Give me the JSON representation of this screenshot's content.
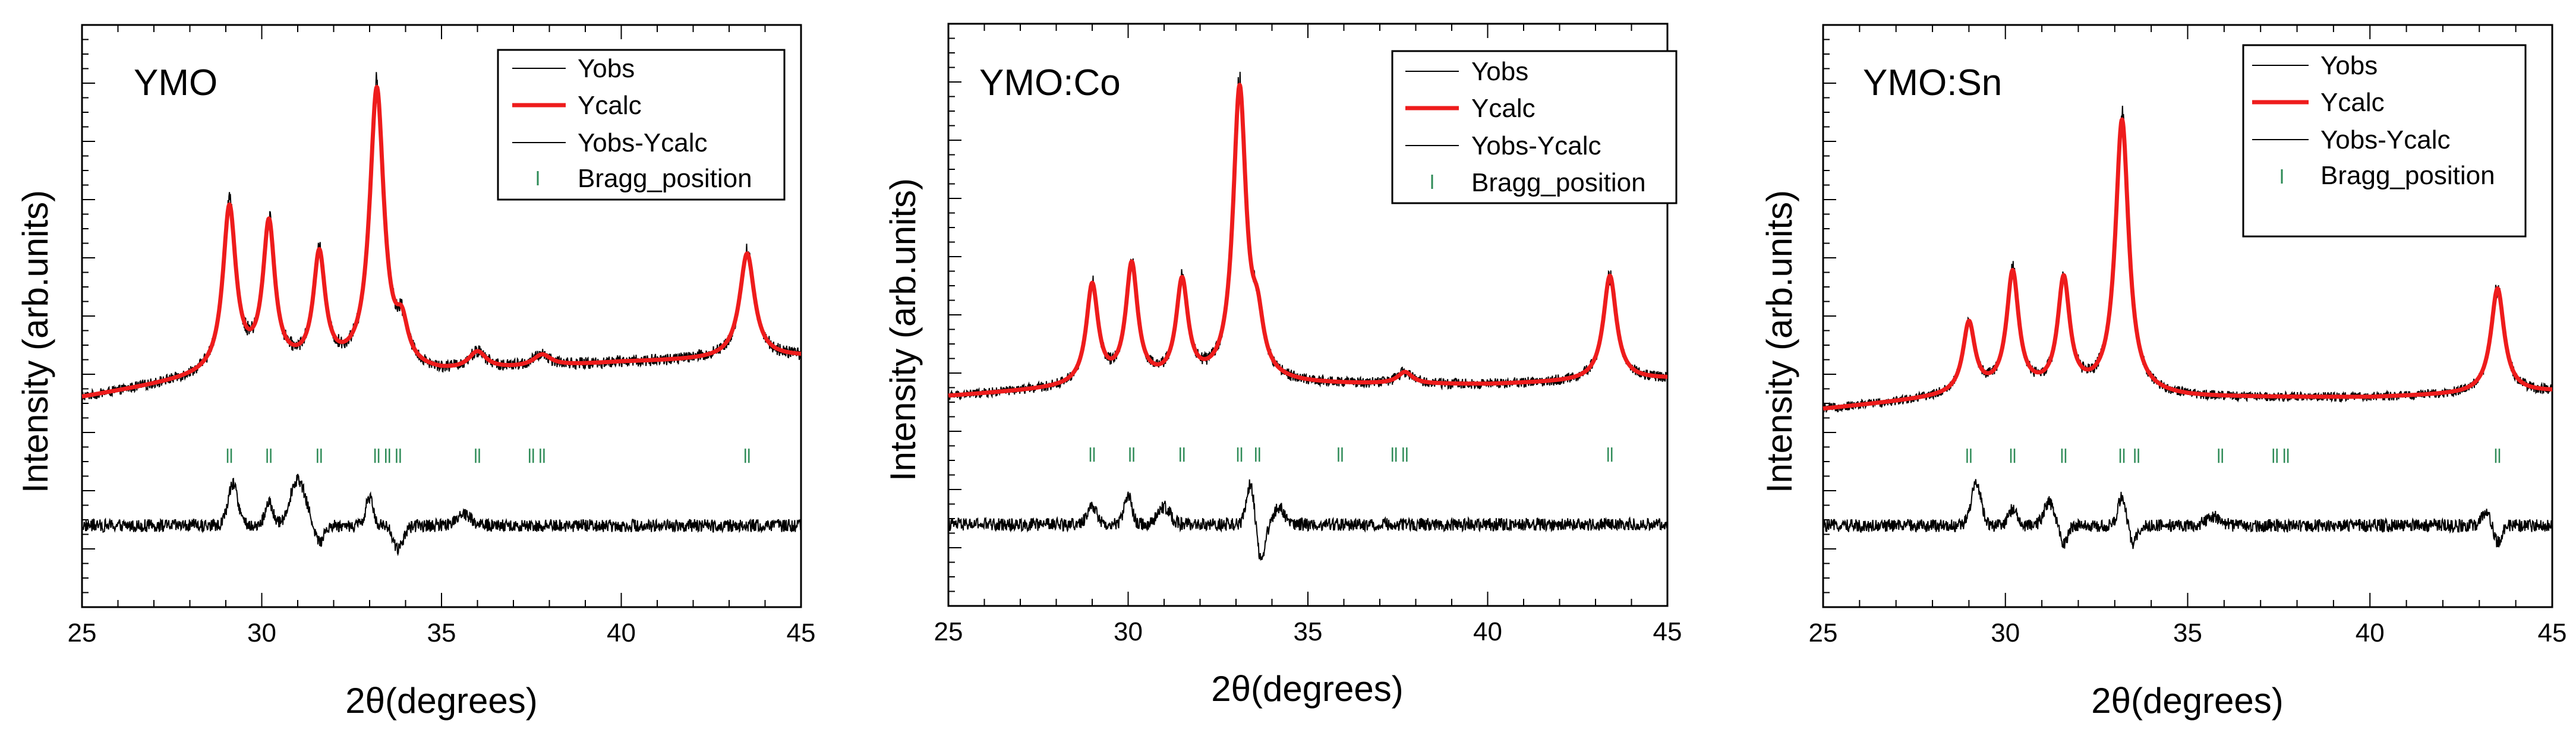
{
  "figure": {
    "x_axis_label_prefix": "2θ",
    "x_axis_label_suffix": "(degrees)",
    "y_axis_label": "Intensity (arb.units)"
  },
  "legend": {
    "entries": [
      "Yobs",
      "Ycalc",
      "Yobs-Ycalc",
      "Bragg_position"
    ],
    "colors": {
      "Yobs": "#000000",
      "Ycalc": "#ee1c1c",
      "Yobs-Ycalc": "#000000",
      "Bragg_position": "#2e8b57"
    }
  },
  "chart_data": [
    {
      "type": "line",
      "title": "YMO",
      "xlabel": "2θ(degrees)",
      "ylabel": "Intensity (arb.units)",
      "xlim": [
        25,
        45
      ],
      "ylim": [
        0,
        100
      ],
      "xticks": [
        25,
        30,
        35,
        40,
        45
      ],
      "yticks_shown": false,
      "legend_position": "top-right",
      "series": [
        {
          "name": "Ycalc",
          "baseline": [
            [
              25,
              36
            ],
            [
              30,
              41
            ],
            [
              35,
              40
            ],
            [
              40,
              42
            ],
            [
              45,
              43
            ]
          ],
          "peaks": [
            [
              29.1,
              28,
              0.22
            ],
            [
              30.2,
              24,
              0.2
            ],
            [
              31.6,
              19,
              0.2
            ],
            [
              33.2,
              48,
              0.24
            ],
            [
              33.9,
              6,
              0.2
            ],
            [
              36.0,
              3,
              0.3
            ],
            [
              37.8,
              2,
              0.3
            ],
            [
              43.5,
              18,
              0.25
            ]
          ]
        },
        {
          "name": "Yobs",
          "note": "Ycalc plus experimental noise"
        },
        {
          "name": "Yobs-Ycalc",
          "baseline": 14,
          "features": [
            [
              29.2,
              7,
              0.2
            ],
            [
              30.2,
              4,
              0.15
            ],
            [
              31.0,
              8,
              0.3
            ],
            [
              31.6,
              -3,
              0.15
            ],
            [
              33.0,
              5,
              0.15
            ],
            [
              33.8,
              -4,
              0.2
            ],
            [
              35.6,
              2,
              0.3
            ]
          ]
        },
        {
          "name": "Bragg_position",
          "row_level": 26,
          "positions": [
            29.1,
            30.2,
            31.6,
            33.2,
            33.5,
            33.8,
            36.0,
            37.5,
            37.8,
            43.5
          ]
        }
      ]
    },
    {
      "type": "line",
      "title": "YMO:Co",
      "xlabel": "2θ(degrees)",
      "ylabel": "Intensity (arb.units)",
      "xlim": [
        25,
        45
      ],
      "ylim": [
        0,
        100
      ],
      "xticks": [
        25,
        30,
        35,
        40,
        45
      ],
      "yticks_shown": false,
      "legend_position": "top-right",
      "series": [
        {
          "name": "Ycalc",
          "baseline": [
            [
              25,
              36
            ],
            [
              30,
              38
            ],
            [
              35,
              38
            ],
            [
              40,
              38
            ],
            [
              45,
              39
            ]
          ],
          "peaks": [
            [
              29.0,
              17,
              0.2
            ],
            [
              30.1,
              20,
              0.2
            ],
            [
              31.5,
              17,
              0.2
            ],
            [
              33.1,
              50,
              0.22
            ],
            [
              33.6,
              8,
              0.2
            ],
            [
              37.7,
              2,
              0.25
            ],
            [
              43.4,
              18,
              0.22
            ]
          ]
        },
        {
          "name": "Yobs",
          "note": "Ycalc plus experimental noise"
        },
        {
          "name": "Yobs-Ycalc",
          "baseline": 14,
          "features": [
            [
              29.0,
              3,
              0.2
            ],
            [
              30.0,
              5,
              0.15
            ],
            [
              31.0,
              3,
              0.25
            ],
            [
              33.4,
              7,
              0.15
            ],
            [
              33.7,
              -6,
              0.15
            ],
            [
              34.2,
              3,
              0.2
            ]
          ]
        },
        {
          "name": "Bragg_position",
          "row_level": 26,
          "positions": [
            29.0,
            30.1,
            31.5,
            33.1,
            33.6,
            35.9,
            37.4,
            37.7,
            43.4
          ]
        }
      ]
    },
    {
      "type": "line",
      "title": "YMO:Sn",
      "xlabel": "2θ(degrees)",
      "ylabel": "Intensity (arb.units)",
      "xlim": [
        25,
        45
      ],
      "ylim": [
        0,
        100
      ],
      "xticks": [
        25,
        30,
        35,
        40,
        45
      ],
      "yticks_shown": false,
      "legend_position": "top-right",
      "series": [
        {
          "name": "Ycalc",
          "baseline": [
            [
              25,
              34
            ],
            [
              30,
              37
            ],
            [
              35,
              36
            ],
            [
              40,
              36
            ],
            [
              45,
              37
            ]
          ],
          "peaks": [
            [
              29.0,
              12,
              0.2
            ],
            [
              30.2,
              20,
              0.2
            ],
            [
              31.6,
              19,
              0.2
            ],
            [
              33.2,
              47,
              0.22
            ],
            [
              43.5,
              18,
              0.22
            ]
          ]
        },
        {
          "name": "Yobs",
          "note": "Ycalc plus experimental noise"
        },
        {
          "name": "Yobs-Ycalc",
          "baseline": 14,
          "features": [
            [
              29.2,
              7,
              0.2
            ],
            [
              30.2,
              3,
              0.15
            ],
            [
              31.2,
              4,
              0.2
            ],
            [
              31.6,
              -3,
              0.15
            ],
            [
              33.2,
              5,
              0.15
            ],
            [
              33.5,
              -3,
              0.15
            ],
            [
              35.7,
              1.5,
              0.3
            ],
            [
              43.2,
              2,
              0.2
            ],
            [
              43.5,
              -3,
              0.15
            ]
          ]
        },
        {
          "name": "Bragg_position",
          "row_level": 26,
          "positions": [
            29.0,
            30.2,
            31.6,
            33.2,
            33.6,
            35.9,
            37.4,
            37.7,
            43.5
          ]
        }
      ]
    }
  ]
}
